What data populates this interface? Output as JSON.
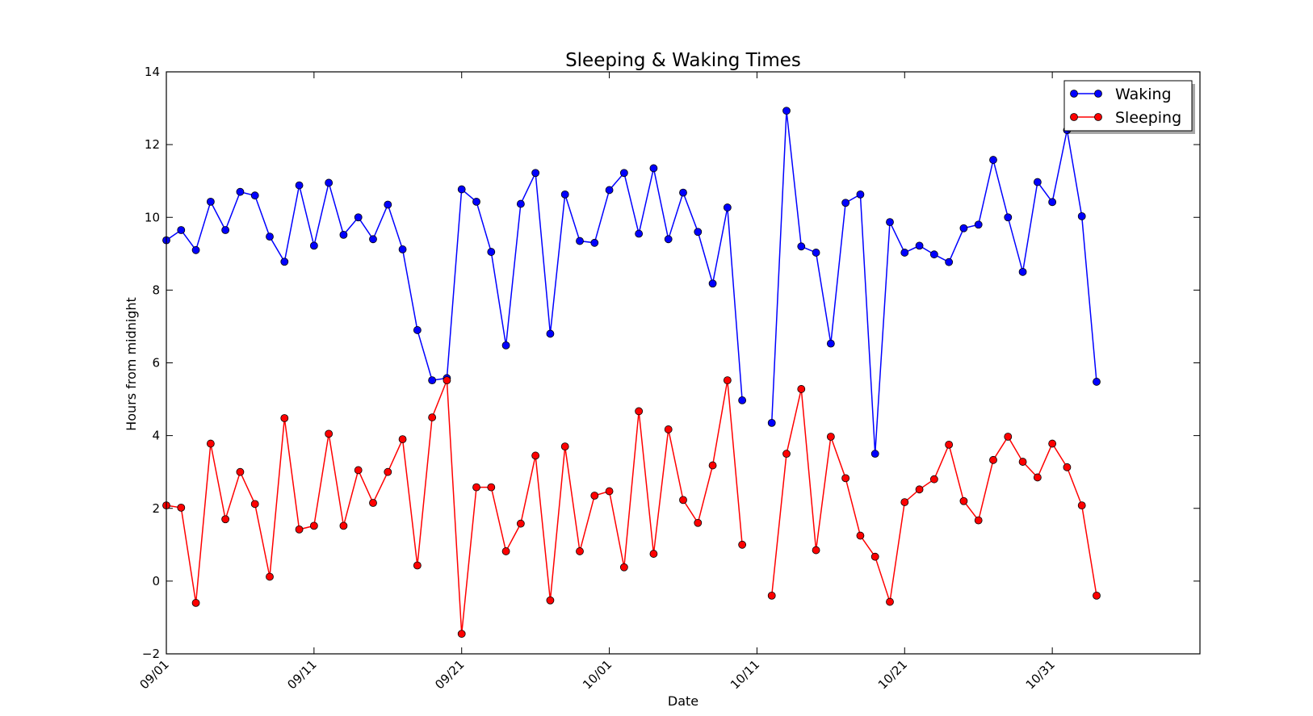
{
  "chart_data": {
    "type": "line",
    "title": "Sleeping & Waking Times",
    "xlabel": "Date",
    "ylabel": "Hours from midnight",
    "xlim": [
      "2014-09-01",
      "2014-11-10"
    ],
    "ylim": [
      -2,
      14
    ],
    "x_ticks": [
      "09/01",
      "09/11",
      "09/21",
      "10/01",
      "10/11",
      "10/21",
      "10/31"
    ],
    "y_ticks": [
      -2,
      0,
      2,
      4,
      6,
      8,
      10,
      12,
      14
    ],
    "grid": false,
    "legend_position": "top-right",
    "dates": [
      "2014-09-01",
      "2014-09-02",
      "2014-09-03",
      "2014-09-04",
      "2014-09-05",
      "2014-09-06",
      "2014-09-07",
      "2014-09-08",
      "2014-09-09",
      "2014-09-10",
      "2014-09-11",
      "2014-09-12",
      "2014-09-13",
      "2014-09-14",
      "2014-09-15",
      "2014-09-16",
      "2014-09-17",
      "2014-09-18",
      "2014-09-19",
      "2014-09-20",
      "2014-09-21",
      "2014-09-22",
      "2014-09-23",
      "2014-09-24",
      "2014-09-25",
      "2014-09-26",
      "2014-09-27",
      "2014-09-28",
      "2014-09-29",
      "2014-09-30",
      "2014-10-01",
      "2014-10-02",
      "2014-10-03",
      "2014-10-04",
      "2014-10-05",
      "2014-10-06",
      "2014-10-07",
      "2014-10-08",
      "2014-10-09",
      "2014-10-10",
      "2014-10-11",
      "2014-10-12",
      "2014-10-13",
      "2014-10-14",
      "2014-10-15",
      "2014-10-16",
      "2014-10-17",
      "2014-10-18",
      "2014-10-19",
      "2014-10-20",
      "2014-10-21",
      "2014-10-22",
      "2014-10-23",
      "2014-10-24",
      "2014-10-25",
      "2014-10-26",
      "2014-10-27",
      "2014-10-28",
      "2014-10-29",
      "2014-10-30",
      "2014-10-31",
      "2014-11-01",
      "2014-11-02",
      "2014-11-03"
    ],
    "series": [
      {
        "name": "Waking",
        "color": "#0000ff",
        "values": [
          9.37,
          9.65,
          9.1,
          10.43,
          9.65,
          10.7,
          10.6,
          9.47,
          8.78,
          10.88,
          9.22,
          10.95,
          9.52,
          10.0,
          9.4,
          10.35,
          9.12,
          6.9,
          5.52,
          5.58,
          10.77,
          10.43,
          9.05,
          6.48,
          10.37,
          11.22,
          6.8,
          10.63,
          9.35,
          9.3,
          10.75,
          11.22,
          9.55,
          11.35,
          9.4,
          10.68,
          9.6,
          8.18,
          10.27,
          4.97,
          null,
          4.35,
          12.93,
          9.2,
          9.03,
          6.53,
          10.4,
          10.63,
          3.5,
          9.87,
          9.03,
          9.22,
          8.98,
          8.77,
          9.7,
          9.8,
          11.58,
          10.0,
          8.5,
          10.97,
          10.42,
          12.4,
          10.03,
          5.48
        ]
      },
      {
        "name": "Sleeping",
        "color": "#ff0000",
        "values": [
          2.08,
          2.02,
          -0.6,
          3.78,
          1.7,
          3.0,
          2.12,
          0.12,
          4.48,
          1.42,
          1.52,
          4.05,
          1.52,
          3.05,
          2.15,
          3.0,
          3.9,
          0.43,
          4.5,
          5.52,
          -1.45,
          2.58,
          2.58,
          0.82,
          1.58,
          3.45,
          -0.53,
          3.7,
          0.82,
          2.35,
          2.47,
          0.38,
          4.67,
          0.75,
          4.17,
          2.23,
          1.6,
          3.18,
          5.52,
          1.0,
          null,
          -0.4,
          3.5,
          5.28,
          0.85,
          3.97,
          2.83,
          1.25,
          0.67,
          -0.57,
          2.17,
          2.52,
          2.8,
          3.75,
          2.2,
          1.67,
          3.33,
          3.97,
          3.28,
          2.85,
          3.78,
          3.13,
          2.08,
          -0.4
        ]
      }
    ]
  }
}
